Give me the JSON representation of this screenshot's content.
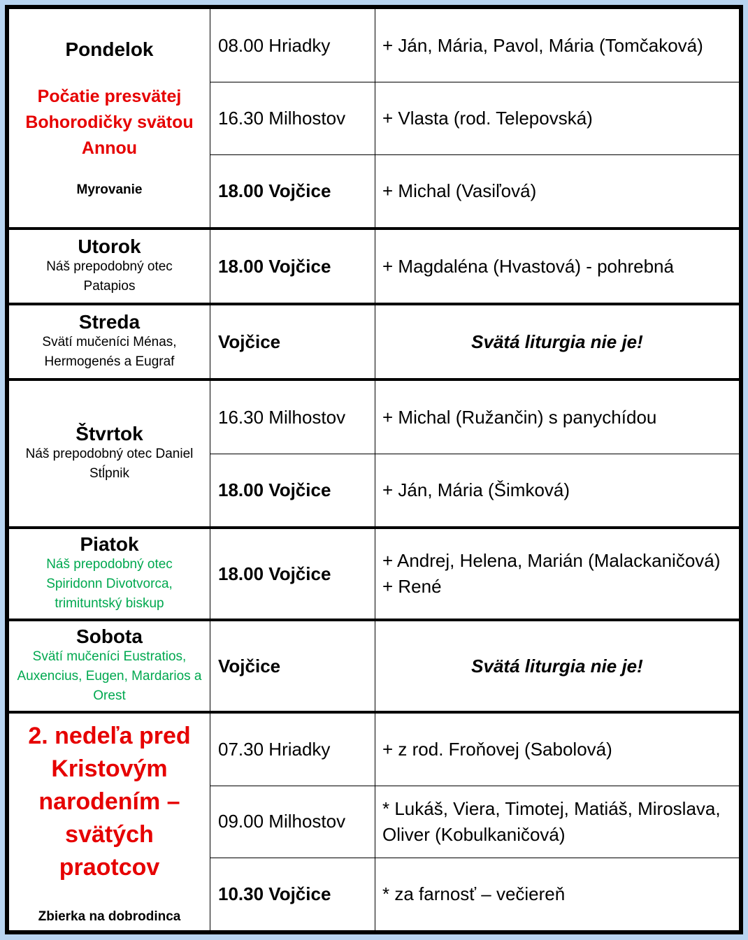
{
  "colors": {
    "background": "#b8d4f0",
    "red": "#e60000",
    "green": "#00a84f",
    "border": "#000000"
  },
  "days": [
    {
      "name": "Pondelok",
      "feast": "Počatie presvätej Bohorodičky svätou Annou",
      "feast_color": "red",
      "note": "Myrovanie",
      "masses": [
        {
          "time": "08.00 Hriadky",
          "bold": false,
          "intention": "+ Ján, Mária, Pavol, Mária (Tomčaková)"
        },
        {
          "time": "16.30 Milhostov",
          "bold": false,
          "intention": "+ Vlasta (rod. Telepovská)"
        },
        {
          "time": "18.00 Vojčice",
          "bold": true,
          "intention": "+ Michal (Vasiľová)"
        }
      ]
    },
    {
      "name": "Utorok",
      "feast": "Náš prepodobný otec Patapios",
      "feast_color": "black",
      "masses": [
        {
          "time": "18.00 Vojčice",
          "bold": true,
          "intention": "+ Magdaléna (Hvastová) - pohrebná"
        }
      ]
    },
    {
      "name": "Streda",
      "feast": "Svätí mučeníci Ménas, Hermogenés a Eugraf",
      "feast_color": "black",
      "masses": [
        {
          "time": "Vojčice",
          "bold": true,
          "intention": "Svätá liturgia nie je!",
          "no_liturgy": true
        }
      ]
    },
    {
      "name": "Štvrtok",
      "feast": "Náš prepodobný otec Daniel Stĺpnik",
      "feast_color": "black",
      "masses": [
        {
          "time": "16.30 Milhostov",
          "bold": false,
          "intention": "+ Michal (Ružančin) s panychídou"
        },
        {
          "time": "18.00 Vojčice",
          "bold": true,
          "intention": "+ Ján, Mária (Šimková)"
        }
      ]
    },
    {
      "name": "Piatok",
      "feast": "Náš prepodobný otec Spiridonn Divotvorca, trimituntský biskup",
      "feast_color": "green",
      "masses": [
        {
          "time": "18.00 Vojčice",
          "bold": true,
          "intention": "+ Andrej, Helena, Marián (Malackaničová)",
          "intention2": "+ René"
        }
      ]
    },
    {
      "name": "Sobota",
      "feast": "Svätí mučeníci Eustratios, Auxencius, Eugen, Mardarios a Orest",
      "feast_color": "green",
      "masses": [
        {
          "time": "Vojčice",
          "bold": true,
          "intention": "Svätá liturgia nie je!",
          "no_liturgy": true
        }
      ]
    },
    {
      "name": "2. nedeľa pred Kristovým narodením – svätých praotcov",
      "sunday": true,
      "note": "Zbierka na dobrodinca",
      "masses": [
        {
          "time": "07.30 Hriadky",
          "bold": false,
          "intention": "+ z rod. Froňovej (Sabolová)"
        },
        {
          "time": "09.00 Milhostov",
          "bold": false,
          "intention": "* Lukáš, Viera, Timotej, Matiáš, Miroslava, Oliver (Kobulkaničová)"
        },
        {
          "time": "10.30 Vojčice",
          "bold": true,
          "intention": "* za farnosť – večiereň"
        }
      ]
    }
  ]
}
